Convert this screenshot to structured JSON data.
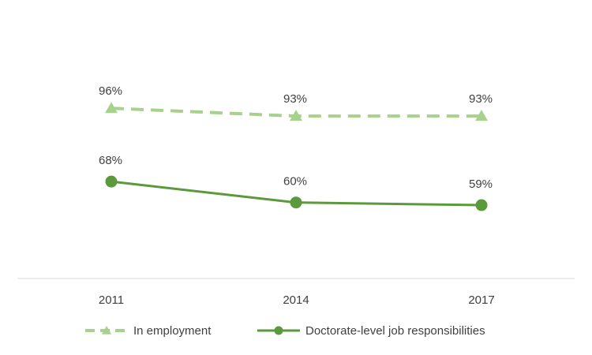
{
  "chart_data": {
    "type": "line",
    "title": "",
    "xlabel": "",
    "ylabel": "",
    "categories": [
      "2011",
      "2014",
      "2017"
    ],
    "ylim": [
      0,
      100
    ],
    "grid": false,
    "legend_position": "bottom",
    "series": [
      {
        "name": "In employment",
        "values": [
          96,
          93,
          93
        ],
        "labels": [
          "96%",
          "93%",
          "93%"
        ],
        "color": "#a9d18e",
        "line_style": "dashed",
        "marker": "triangle"
      },
      {
        "name": "Doctorate-level job responsibilities",
        "values": [
          68,
          60,
          59
        ],
        "labels": [
          "68%",
          "60%",
          "59%"
        ],
        "color": "#5b9a3c",
        "line_style": "solid",
        "marker": "circle"
      }
    ]
  }
}
